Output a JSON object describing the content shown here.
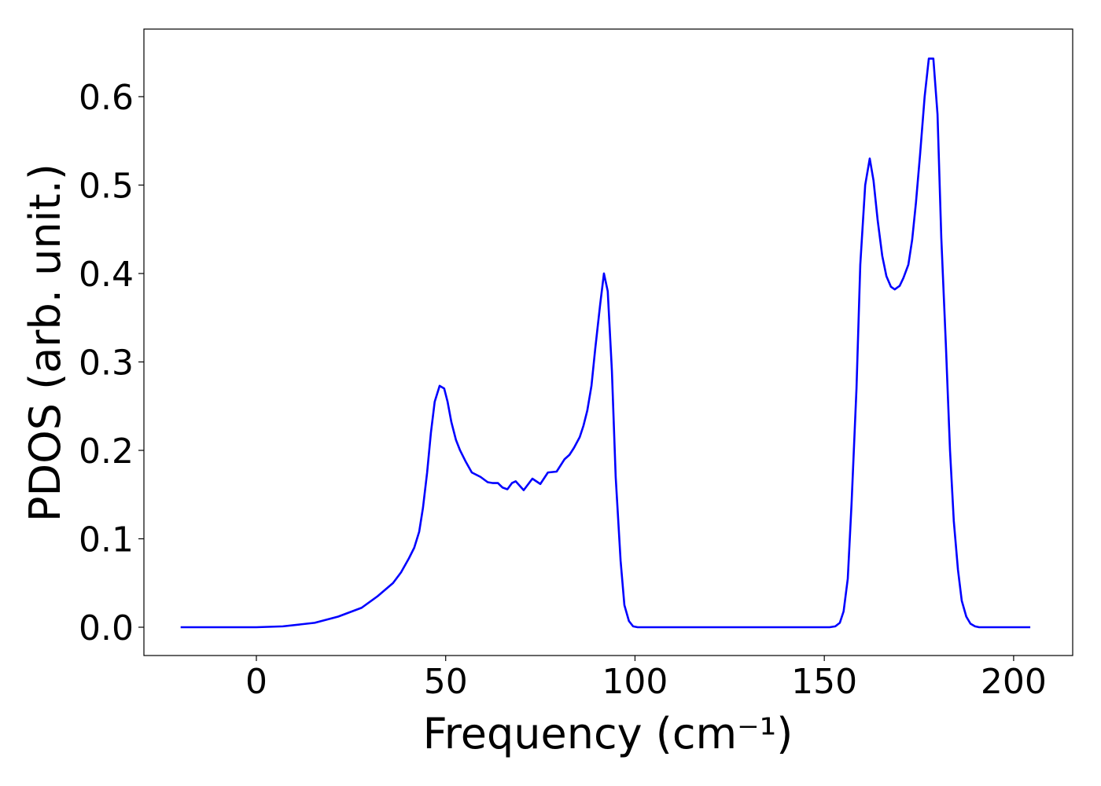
{
  "chart_data": {
    "type": "line",
    "xlabel": "Frequency (cm⁻¹)",
    "ylabel": "PDOS (arb. unit.)",
    "x": [
      -20,
      0,
      7,
      15.4,
      21.6,
      27.8,
      32,
      36.1,
      38.2,
      40.3,
      41.7,
      43,
      44,
      45.1,
      46.1,
      47.1,
      48.4,
      49.6,
      50.5,
      51.5,
      52.7,
      53.8,
      55.2,
      56.9,
      59.2,
      61.1,
      62.5,
      63.8,
      65,
      66.3,
      67.5,
      68.5,
      70.6,
      72.9,
      75,
      77,
      79.3,
      81.4,
      82.7,
      83.9,
      85.4,
      86.4,
      87.4,
      88.5,
      89.5,
      90.8,
      91.8,
      92.8,
      93.9,
      94.9,
      96.2,
      97.2,
      98.4,
      99.5,
      100.7,
      151.4,
      152.9,
      154.1,
      155.1,
      156.2,
      157.2,
      158.5,
      159.5,
      160.8,
      162,
      163,
      164.1,
      165.3,
      166.4,
      167.6,
      168.6,
      169.9,
      170.9,
      172.2,
      173.2,
      174.2,
      175.3,
      176.5,
      177.6,
      178.8,
      179.9,
      180.9,
      182.1,
      183.2,
      184.2,
      185.3,
      186.3,
      187.5,
      188.6,
      189.8,
      190.9,
      204.4
    ],
    "series": [
      {
        "color": "#0000ff",
        "values": [
          0,
          0,
          0.001,
          0.005,
          0.012,
          0.022,
          0.035,
          0.05,
          0.062,
          0.078,
          0.09,
          0.108,
          0.135,
          0.175,
          0.22,
          0.255,
          0.273,
          0.27,
          0.255,
          0.232,
          0.212,
          0.2,
          0.188,
          0.175,
          0.17,
          0.164,
          0.163,
          0.163,
          0.158,
          0.156,
          0.163,
          0.165,
          0.155,
          0.168,
          0.162,
          0.175,
          0.176,
          0.19,
          0.195,
          0.203,
          0.215,
          0.228,
          0.245,
          0.273,
          0.315,
          0.365,
          0.4,
          0.38,
          0.29,
          0.17,
          0.075,
          0.025,
          0.007,
          0.001,
          0,
          0,
          0.001,
          0.005,
          0.018,
          0.055,
          0.14,
          0.27,
          0.41,
          0.5,
          0.53,
          0.505,
          0.46,
          0.42,
          0.397,
          0.385,
          0.382,
          0.386,
          0.395,
          0.41,
          0.438,
          0.48,
          0.535,
          0.6,
          0.643,
          0.643,
          0.58,
          0.44,
          0.32,
          0.2,
          0.12,
          0.065,
          0.03,
          0.012,
          0.004,
          0.001,
          0,
          0
        ]
      }
    ],
    "xlim": [
      -29.7,
      215.6
    ],
    "ylim": [
      -0.032,
      0.6764
    ],
    "xticks": [
      0,
      50,
      100,
      150,
      200
    ],
    "yticks": [
      {
        "value": 0,
        "label": "0.0"
      },
      0.1,
      0.2,
      0.3,
      0.4,
      0.5,
      0.6
    ],
    "grid": false
  }
}
